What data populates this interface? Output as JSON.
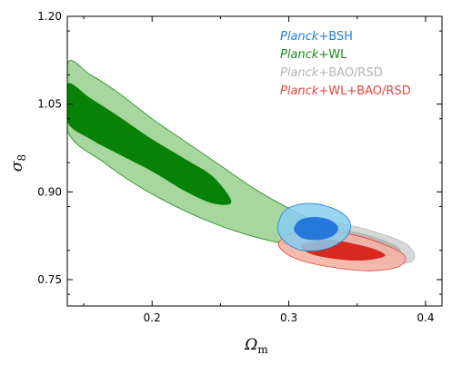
{
  "chart_data": {
    "type": "contour",
    "xlabel": "Ω",
    "xlabel_sub": "m",
    "ylabel": "σ",
    "ylabel_sub": "8",
    "xlim": [
      0.138,
      0.412
    ],
    "ylim": [
      0.705,
      1.2
    ],
    "x_ticks": [
      0.2,
      0.3,
      0.4
    ],
    "x_tick_labels": [
      "0.2",
      "0.3",
      "0.4"
    ],
    "y_ticks": [
      0.75,
      0.9,
      1.05,
      1.2
    ],
    "y_tick_labels": [
      "0.75",
      "0.90",
      "1.05",
      "1.20"
    ],
    "legend_position": "top-right",
    "series": [
      {
        "name": "Planck+BSH",
        "name_italic": "Planck",
        "name_rest": "+BSH",
        "color": "#1f7fd9",
        "outer_fill": "#87cdee",
        "inner_fill": "#1a6fd8",
        "contour_95": [
          [
            0.293,
            0.852
          ],
          [
            0.297,
            0.868
          ],
          [
            0.306,
            0.878
          ],
          [
            0.318,
            0.88
          ],
          [
            0.33,
            0.874
          ],
          [
            0.34,
            0.862
          ],
          [
            0.345,
            0.845
          ],
          [
            0.343,
            0.826
          ],
          [
            0.335,
            0.81
          ],
          [
            0.322,
            0.8
          ],
          [
            0.308,
            0.801
          ],
          [
            0.297,
            0.815
          ],
          [
            0.292,
            0.834
          ]
        ],
        "contour_68": [
          [
            0.304,
            0.84
          ],
          [
            0.309,
            0.853
          ],
          [
            0.32,
            0.857
          ],
          [
            0.33,
            0.852
          ],
          [
            0.336,
            0.84
          ],
          [
            0.333,
            0.826
          ],
          [
            0.323,
            0.818
          ],
          [
            0.311,
            0.82
          ],
          [
            0.305,
            0.83
          ]
        ]
      },
      {
        "name": "Planck+WL",
        "name_italic": "Planck",
        "name_rest": "+WL",
        "color": "#1a8a1a",
        "outer_fill": "#9ed195",
        "inner_fill": "#078207",
        "contour_95": [
          [
            0.138,
            1.12
          ],
          [
            0.155,
            1.1
          ],
          [
            0.175,
            1.07
          ],
          [
            0.2,
            1.025
          ],
          [
            0.225,
            0.985
          ],
          [
            0.25,
            0.945
          ],
          [
            0.275,
            0.905
          ],
          [
            0.3,
            0.872
          ],
          [
            0.33,
            0.838
          ],
          [
            0.355,
            0.815
          ],
          [
            0.368,
            0.805
          ],
          [
            0.365,
            0.79
          ],
          [
            0.34,
            0.79
          ],
          [
            0.31,
            0.805
          ],
          [
            0.28,
            0.82
          ],
          [
            0.25,
            0.842
          ],
          [
            0.22,
            0.872
          ],
          [
            0.19,
            0.91
          ],
          [
            0.165,
            0.95
          ],
          [
            0.138,
            1.005
          ]
        ],
        "contour_68": [
          [
            0.138,
            1.085
          ],
          [
            0.155,
            1.06
          ],
          [
            0.175,
            1.03
          ],
          [
            0.2,
            0.99
          ],
          [
            0.225,
            0.955
          ],
          [
            0.245,
            0.925
          ],
          [
            0.258,
            0.883
          ],
          [
            0.245,
            0.88
          ],
          [
            0.225,
            0.9
          ],
          [
            0.2,
            0.935
          ],
          [
            0.175,
            0.965
          ],
          [
            0.155,
            0.99
          ],
          [
            0.138,
            1.02
          ]
        ]
      },
      {
        "name": "Planck+BAO/RSD",
        "name_italic": "Planck",
        "name_rest": "+BAO/RSD",
        "color": "#b3b3b3",
        "outer_fill": "#d3d3d3",
        "inner_fill": "#b5b5b5",
        "contour_95": [
          [
            0.298,
            0.83
          ],
          [
            0.315,
            0.848
          ],
          [
            0.34,
            0.845
          ],
          [
            0.365,
            0.83
          ],
          [
            0.385,
            0.812
          ],
          [
            0.392,
            0.79
          ],
          [
            0.385,
            0.778
          ],
          [
            0.36,
            0.778
          ],
          [
            0.34,
            0.785
          ],
          [
            0.315,
            0.8
          ],
          [
            0.3,
            0.815
          ]
        ],
        "contour_68": [
          [
            0.31,
            0.825
          ],
          [
            0.33,
            0.838
          ],
          [
            0.355,
            0.828
          ],
          [
            0.375,
            0.812
          ],
          [
            0.382,
            0.798
          ],
          [
            0.372,
            0.79
          ],
          [
            0.35,
            0.792
          ],
          [
            0.328,
            0.8
          ],
          [
            0.312,
            0.812
          ]
        ]
      },
      {
        "name": "Planck+WL+BAO/RSD",
        "name_italic": "Planck",
        "name_rest": "+WL+BAO/RSD",
        "color": "#e8453c",
        "outer_fill": "#f4b2a5",
        "inner_fill": "#d8281f",
        "contour_95": [
          [
            0.293,
            0.815
          ],
          [
            0.305,
            0.832
          ],
          [
            0.325,
            0.835
          ],
          [
            0.35,
            0.825
          ],
          [
            0.372,
            0.808
          ],
          [
            0.385,
            0.79
          ],
          [
            0.38,
            0.772
          ],
          [
            0.36,
            0.765
          ],
          [
            0.335,
            0.77
          ],
          [
            0.31,
            0.782
          ],
          [
            0.296,
            0.798
          ]
        ],
        "contour_68": [
          [
            0.31,
            0.81
          ],
          [
            0.33,
            0.818
          ],
          [
            0.35,
            0.81
          ],
          [
            0.365,
            0.8
          ],
          [
            0.37,
            0.79
          ],
          [
            0.355,
            0.783
          ],
          [
            0.335,
            0.785
          ],
          [
            0.315,
            0.795
          ]
        ]
      }
    ]
  }
}
